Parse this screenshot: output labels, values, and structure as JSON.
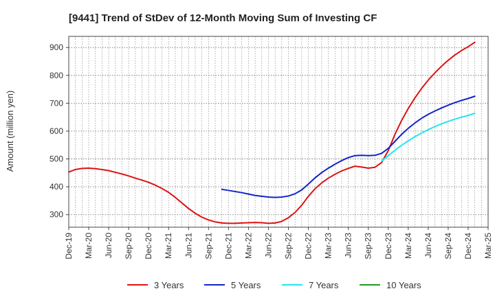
{
  "chart_data": {
    "type": "line",
    "title": "[9441]  Trend of StDev of 12-Month Moving Sum of Investing CF",
    "xlabel": "",
    "ylabel": "Amount (million yen)",
    "ylim": [
      255,
      940
    ],
    "yticks": [
      300,
      400,
      500,
      600,
      700,
      800,
      900
    ],
    "x_tick_labels": [
      "Dec-19",
      "Mar-20",
      "Jun-20",
      "Sep-20",
      "Dec-20",
      "Mar-21",
      "Jun-21",
      "Sep-21",
      "Dec-21",
      "Mar-22",
      "Jun-22",
      "Sep-22",
      "Dec-22",
      "Mar-23",
      "Jun-23",
      "Sep-23",
      "Dec-23",
      "Mar-24",
      "Jun-24",
      "Sep-24",
      "Dec-24",
      "Mar-25"
    ],
    "x_range": [
      "2019-12",
      "2025-03"
    ],
    "grid": true,
    "legend_position": "bottom",
    "series": [
      {
        "name": "3 Years",
        "color": "#dd1111",
        "points": [
          [
            "2019-12",
            453
          ],
          [
            "2020-01",
            462
          ],
          [
            "2020-02",
            466
          ],
          [
            "2020-03",
            467
          ],
          [
            "2020-04",
            465
          ],
          [
            "2020-05",
            462
          ],
          [
            "2020-06",
            458
          ],
          [
            "2020-07",
            452
          ],
          [
            "2020-08",
            446
          ],
          [
            "2020-09",
            439
          ],
          [
            "2020-10",
            431
          ],
          [
            "2020-11",
            424
          ],
          [
            "2020-12",
            416
          ],
          [
            "2021-01",
            406
          ],
          [
            "2021-02",
            394
          ],
          [
            "2021-03",
            380
          ],
          [
            "2021-04",
            362
          ],
          [
            "2021-05",
            342
          ],
          [
            "2021-06",
            322
          ],
          [
            "2021-07",
            305
          ],
          [
            "2021-08",
            291
          ],
          [
            "2021-09",
            281
          ],
          [
            "2021-10",
            274
          ],
          [
            "2021-11",
            270
          ],
          [
            "2021-12",
            269
          ],
          [
            "2022-01",
            269
          ],
          [
            "2022-02",
            270
          ],
          [
            "2022-03",
            271
          ],
          [
            "2022-04",
            272
          ],
          [
            "2022-05",
            271
          ],
          [
            "2022-06",
            269
          ],
          [
            "2022-07",
            270
          ],
          [
            "2022-08",
            276
          ],
          [
            "2022-09",
            289
          ],
          [
            "2022-10",
            308
          ],
          [
            "2022-11",
            334
          ],
          [
            "2022-12",
            366
          ],
          [
            "2023-01",
            393
          ],
          [
            "2023-02",
            414
          ],
          [
            "2023-03",
            431
          ],
          [
            "2023-04",
            445
          ],
          [
            "2023-05",
            457
          ],
          [
            "2023-06",
            466
          ],
          [
            "2023-07",
            474
          ],
          [
            "2023-08",
            471
          ],
          [
            "2023-09",
            467
          ],
          [
            "2023-10",
            470
          ],
          [
            "2023-11",
            487
          ],
          [
            "2023-12",
            530
          ],
          [
            "2024-01",
            588
          ],
          [
            "2024-02",
            638
          ],
          [
            "2024-03",
            681
          ],
          [
            "2024-04",
            719
          ],
          [
            "2024-05",
            753
          ],
          [
            "2024-06",
            783
          ],
          [
            "2024-07",
            809
          ],
          [
            "2024-08",
            833
          ],
          [
            "2024-09",
            854
          ],
          [
            "2024-10",
            873
          ],
          [
            "2024-11",
            889
          ],
          [
            "2024-12",
            903
          ],
          [
            "2025-01",
            919
          ]
        ]
      },
      {
        "name": "5 Years",
        "color": "#1122cc",
        "points": [
          [
            "2021-11",
            391
          ],
          [
            "2021-12",
            387
          ],
          [
            "2022-01",
            383
          ],
          [
            "2022-02",
            379
          ],
          [
            "2022-03",
            374
          ],
          [
            "2022-04",
            369
          ],
          [
            "2022-05",
            366
          ],
          [
            "2022-06",
            363
          ],
          [
            "2022-07",
            362
          ],
          [
            "2022-08",
            363
          ],
          [
            "2022-09",
            367
          ],
          [
            "2022-10",
            375
          ],
          [
            "2022-11",
            389
          ],
          [
            "2022-12",
            410
          ],
          [
            "2023-01",
            432
          ],
          [
            "2023-02",
            451
          ],
          [
            "2023-03",
            467
          ],
          [
            "2023-04",
            481
          ],
          [
            "2023-05",
            494
          ],
          [
            "2023-06",
            505
          ],
          [
            "2023-07",
            512
          ],
          [
            "2023-08",
            513
          ],
          [
            "2023-09",
            512
          ],
          [
            "2023-10",
            513
          ],
          [
            "2023-11",
            520
          ],
          [
            "2023-12",
            538
          ],
          [
            "2024-01",
            563
          ],
          [
            "2024-02",
            588
          ],
          [
            "2024-03",
            610
          ],
          [
            "2024-04",
            629
          ],
          [
            "2024-05",
            646
          ],
          [
            "2024-06",
            660
          ],
          [
            "2024-07",
            672
          ],
          [
            "2024-08",
            683
          ],
          [
            "2024-09",
            693
          ],
          [
            "2024-10",
            702
          ],
          [
            "2024-11",
            710
          ],
          [
            "2024-12",
            717
          ],
          [
            "2025-01",
            725
          ]
        ]
      },
      {
        "name": "7 Years",
        "color": "#22e5f0",
        "points": [
          [
            "2023-11",
            492
          ],
          [
            "2023-12",
            512
          ],
          [
            "2024-01",
            531
          ],
          [
            "2024-02",
            549
          ],
          [
            "2024-03",
            565
          ],
          [
            "2024-04",
            580
          ],
          [
            "2024-05",
            593
          ],
          [
            "2024-06",
            605
          ],
          [
            "2024-07",
            616
          ],
          [
            "2024-08",
            626
          ],
          [
            "2024-09",
            635
          ],
          [
            "2024-10",
            643
          ],
          [
            "2024-11",
            650
          ],
          [
            "2024-12",
            656
          ],
          [
            "2025-01",
            664
          ]
        ]
      },
      {
        "name": "10 Years",
        "color": "#229922",
        "points": []
      }
    ]
  }
}
